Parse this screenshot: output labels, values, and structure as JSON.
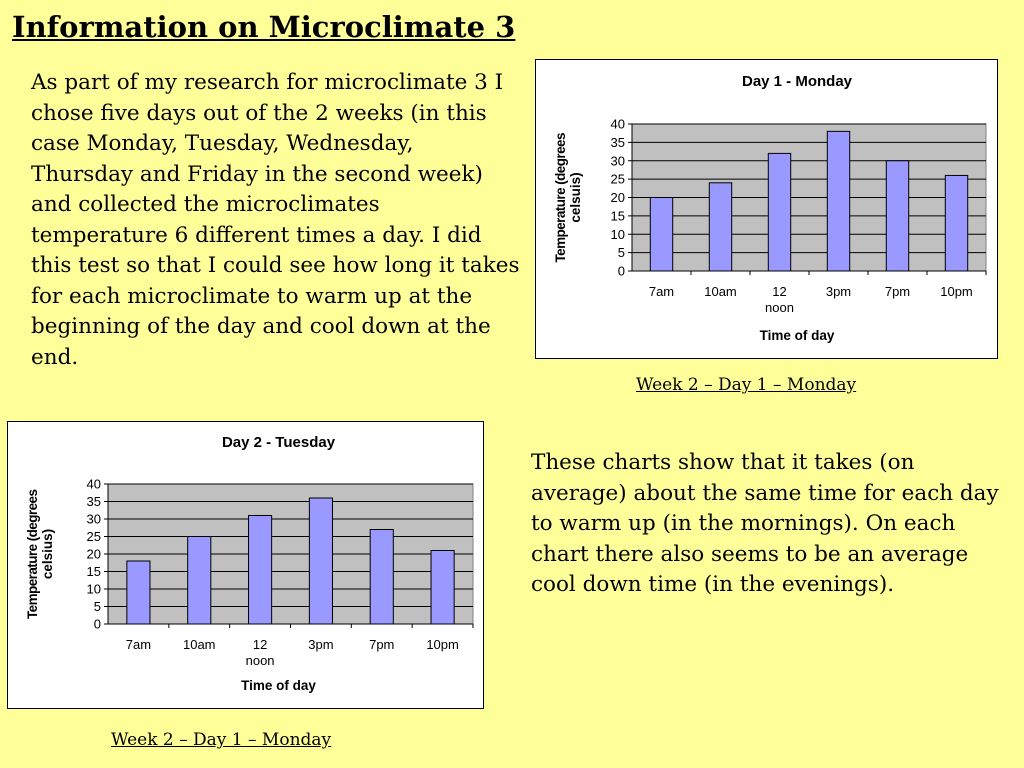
{
  "page": {
    "title": "Information on Microclimate 3",
    "intro": "As part of my research for microclimate 3 I chose five days out of the 2 weeks (in this case Monday, Tuesday, Wednesday, Thursday and Friday in the second week) and collected the microclimates temperature 6 different times a day. I did this test so that I could see how long it takes for each microclimate to warm up at the beginning of the day and cool down at the end.",
    "conclusion": "These charts show that it takes (on average) about the same time for each day to warm up (in the mornings). On each chart there also seems to be an average cool down time (in the evenings).",
    "caption1": "Week 2 – Day 1 – Monday",
    "caption2": "Week 2 – Day 1 – Monday"
  },
  "colors": {
    "background": "#ffff99",
    "plot_area": "#c0c0c0",
    "bar_fill": "#9999ff",
    "bar_stroke": "#000000"
  },
  "chart_data": [
    {
      "type": "bar",
      "title": "Day 1 - Monday",
      "xlabel": "Time of day",
      "ylabel_lines": [
        "Temperature (degrees",
        "celsuis)"
      ],
      "categories": [
        [
          "7am"
        ],
        [
          "10am"
        ],
        [
          "12",
          "noon"
        ],
        [
          "3pm"
        ],
        [
          "7pm"
        ],
        [
          "10pm"
        ]
      ],
      "values": [
        20,
        24,
        32,
        38,
        30,
        26
      ],
      "ylim": [
        0,
        40
      ],
      "yticks": [
        0,
        5,
        10,
        15,
        20,
        25,
        30,
        35,
        40
      ],
      "grid": true,
      "legend": "none"
    },
    {
      "type": "bar",
      "title": "Day 2 - Tuesday",
      "xlabel": "Time of day",
      "ylabel_lines": [
        "Temperature (degrees",
        "celsius)"
      ],
      "categories": [
        [
          "7am"
        ],
        [
          "10am"
        ],
        [
          "12",
          "noon"
        ],
        [
          "3pm"
        ],
        [
          "7pm"
        ],
        [
          "10pm"
        ]
      ],
      "values": [
        18,
        25,
        31,
        36,
        27,
        21
      ],
      "ylim": [
        0,
        40
      ],
      "yticks": [
        0,
        5,
        10,
        15,
        20,
        25,
        30,
        35,
        40
      ],
      "grid": true,
      "legend": "none"
    }
  ]
}
